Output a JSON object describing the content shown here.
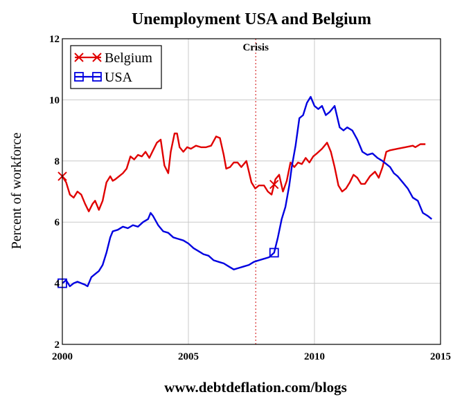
{
  "chart_data": {
    "type": "line",
    "title": "Unemployment USA and Belgium",
    "ylabel": "Percent of workforce",
    "xlabel": "",
    "footer": "www.debtdeflation.com/blogs",
    "xlim": [
      2000,
      2015
    ],
    "ylim": [
      2,
      12
    ],
    "x_ticks": [
      2000,
      2005,
      2010,
      2015
    ],
    "y_ticks": [
      2,
      4,
      6,
      8,
      10,
      12
    ],
    "grid": true,
    "legend_position": "top-left",
    "annotations": [
      {
        "text": "Crisis",
        "x": 2007.67,
        "style": "dotted-vertical-line"
      }
    ],
    "series": [
      {
        "name": "Belgium",
        "color": "#e00000",
        "marker": "x",
        "marker_x": [
          2000.0,
          2008.4
        ],
        "x": [
          2000.0,
          2000.15,
          2000.3,
          2000.45,
          2000.6,
          2000.75,
          2000.9,
          2001.05,
          2001.2,
          2001.3,
          2001.45,
          2001.6,
          2001.75,
          2001.9,
          2002.0,
          2002.1,
          2002.25,
          2002.4,
          2002.55,
          2002.7,
          2002.85,
          2003.0,
          2003.15,
          2003.3,
          2003.45,
          2003.6,
          2003.75,
          2003.9,
          2004.05,
          2004.2,
          2004.3,
          2004.45,
          2004.55,
          2004.65,
          2004.8,
          2004.95,
          2005.1,
          2005.3,
          2005.5,
          2005.7,
          2005.9,
          2006.1,
          2006.25,
          2006.4,
          2006.5,
          2006.65,
          2006.8,
          2006.95,
          2007.1,
          2007.3,
          2007.5,
          2007.65,
          2007.8,
          2008.0,
          2008.15,
          2008.3,
          2008.45,
          2008.6,
          2008.75,
          2008.9,
          2009.05,
          2009.2,
          2009.35,
          2009.5,
          2009.65,
          2009.8,
          2009.95,
          2010.1,
          2010.3,
          2010.5,
          2010.65,
          2010.8,
          2010.95,
          2011.1,
          2011.25,
          2011.4,
          2011.55,
          2011.7,
          2011.85,
          2012.0,
          2012.2,
          2012.4,
          2012.55,
          2012.7,
          2012.85,
          2013.0,
          2013.3,
          2013.6,
          2013.9,
          2014.0,
          2014.2,
          2014.4
        ],
        "values": [
          7.5,
          7.3,
          6.9,
          6.8,
          7.0,
          6.9,
          6.6,
          6.35,
          6.6,
          6.7,
          6.4,
          6.7,
          7.3,
          7.5,
          7.35,
          7.4,
          7.5,
          7.6,
          7.75,
          8.15,
          8.05,
          8.2,
          8.15,
          8.3,
          8.1,
          8.35,
          8.6,
          8.7,
          7.85,
          7.6,
          8.3,
          8.9,
          8.9,
          8.45,
          8.3,
          8.45,
          8.4,
          8.5,
          8.45,
          8.45,
          8.5,
          8.8,
          8.75,
          8.2,
          7.75,
          7.8,
          7.95,
          7.95,
          7.8,
          8.0,
          7.3,
          7.1,
          7.2,
          7.2,
          7.0,
          6.9,
          7.4,
          7.55,
          7.0,
          7.35,
          7.95,
          7.8,
          7.95,
          7.9,
          8.1,
          7.95,
          8.15,
          8.25,
          8.4,
          8.6,
          8.3,
          7.8,
          7.2,
          7.0,
          7.1,
          7.3,
          7.55,
          7.45,
          7.25,
          7.25,
          7.5,
          7.65,
          7.45,
          7.8,
          8.3,
          8.35,
          8.4,
          8.45,
          8.5,
          8.45,
          8.55,
          8.55
        ]
      },
      {
        "name": "USA",
        "color": "#0000e0",
        "marker": "square",
        "marker_x": [
          2000.0,
          2008.4
        ],
        "x": [
          2000.0,
          2000.15,
          2000.3,
          2000.45,
          2000.6,
          2000.75,
          2000.9,
          2001.0,
          2001.15,
          2001.3,
          2001.45,
          2001.6,
          2001.75,
          2001.9,
          2002.0,
          2002.2,
          2002.4,
          2002.6,
          2002.8,
          2003.0,
          2003.2,
          2003.4,
          2003.5,
          2003.6,
          2003.8,
          2004.0,
          2004.2,
          2004.4,
          2004.6,
          2004.8,
          2005.0,
          2005.2,
          2005.4,
          2005.6,
          2005.8,
          2006.0,
          2006.2,
          2006.4,
          2006.6,
          2006.8,
          2007.0,
          2007.2,
          2007.4,
          2007.6,
          2007.8,
          2008.0,
          2008.2,
          2008.4,
          2008.55,
          2008.7,
          2008.85,
          2009.0,
          2009.1,
          2009.25,
          2009.4,
          2009.55,
          2009.7,
          2009.85,
          2010.0,
          2010.15,
          2010.3,
          2010.45,
          2010.6,
          2010.8,
          2011.0,
          2011.15,
          2011.3,
          2011.5,
          2011.7,
          2011.9,
          2012.1,
          2012.3,
          2012.5,
          2012.7,
          2012.85,
          2013.0,
          2013.15,
          2013.3,
          2013.5,
          2013.7,
          2013.9,
          2014.1,
          2014.3,
          2014.5,
          2014.65
        ],
        "values": [
          4.0,
          4.1,
          3.9,
          4.0,
          4.05,
          4.0,
          3.95,
          3.9,
          4.2,
          4.3,
          4.4,
          4.6,
          5.0,
          5.5,
          5.7,
          5.75,
          5.85,
          5.8,
          5.9,
          5.85,
          6.0,
          6.1,
          6.3,
          6.2,
          5.9,
          5.7,
          5.65,
          5.5,
          5.45,
          5.4,
          5.3,
          5.15,
          5.05,
          4.95,
          4.9,
          4.75,
          4.7,
          4.65,
          4.55,
          4.45,
          4.5,
          4.55,
          4.6,
          4.7,
          4.75,
          4.8,
          4.85,
          5.0,
          5.5,
          6.1,
          6.5,
          7.2,
          7.8,
          8.5,
          9.4,
          9.5,
          9.9,
          10.1,
          9.8,
          9.7,
          9.8,
          9.5,
          9.6,
          9.8,
          9.1,
          9.0,
          9.1,
          9.0,
          8.7,
          8.3,
          8.2,
          8.25,
          8.1,
          8.0,
          7.9,
          7.8,
          7.6,
          7.5,
          7.3,
          7.1,
          6.8,
          6.7,
          6.3,
          6.2,
          6.1
        ]
      }
    ]
  },
  "legend": {
    "items": [
      {
        "label": "Belgium"
      },
      {
        "label": "USA"
      }
    ]
  }
}
